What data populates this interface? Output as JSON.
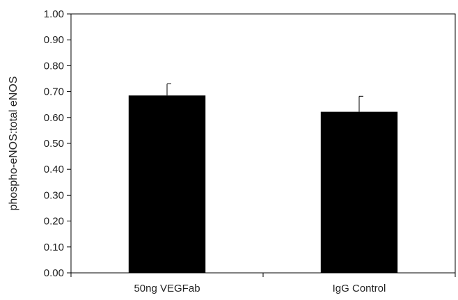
{
  "chart_data": {
    "type": "bar",
    "title": "",
    "xlabel": "",
    "ylabel": "phospho-eNOS:total eNOS",
    "categories": [
      "50ng VEGFab",
      "IgG Control"
    ],
    "values": [
      0.685,
      0.622
    ],
    "error_upper": [
      0.045,
      0.06
    ],
    "ylim": [
      0,
      1.0
    ],
    "ytick_step": 0.1,
    "ytick_labels": [
      "0.00",
      "0.10",
      "0.20",
      "0.30",
      "0.40",
      "0.50",
      "0.60",
      "0.70",
      "0.80",
      "0.90",
      "1.00"
    ],
    "grid": false,
    "legend": "none",
    "bar_color": "#000000"
  }
}
